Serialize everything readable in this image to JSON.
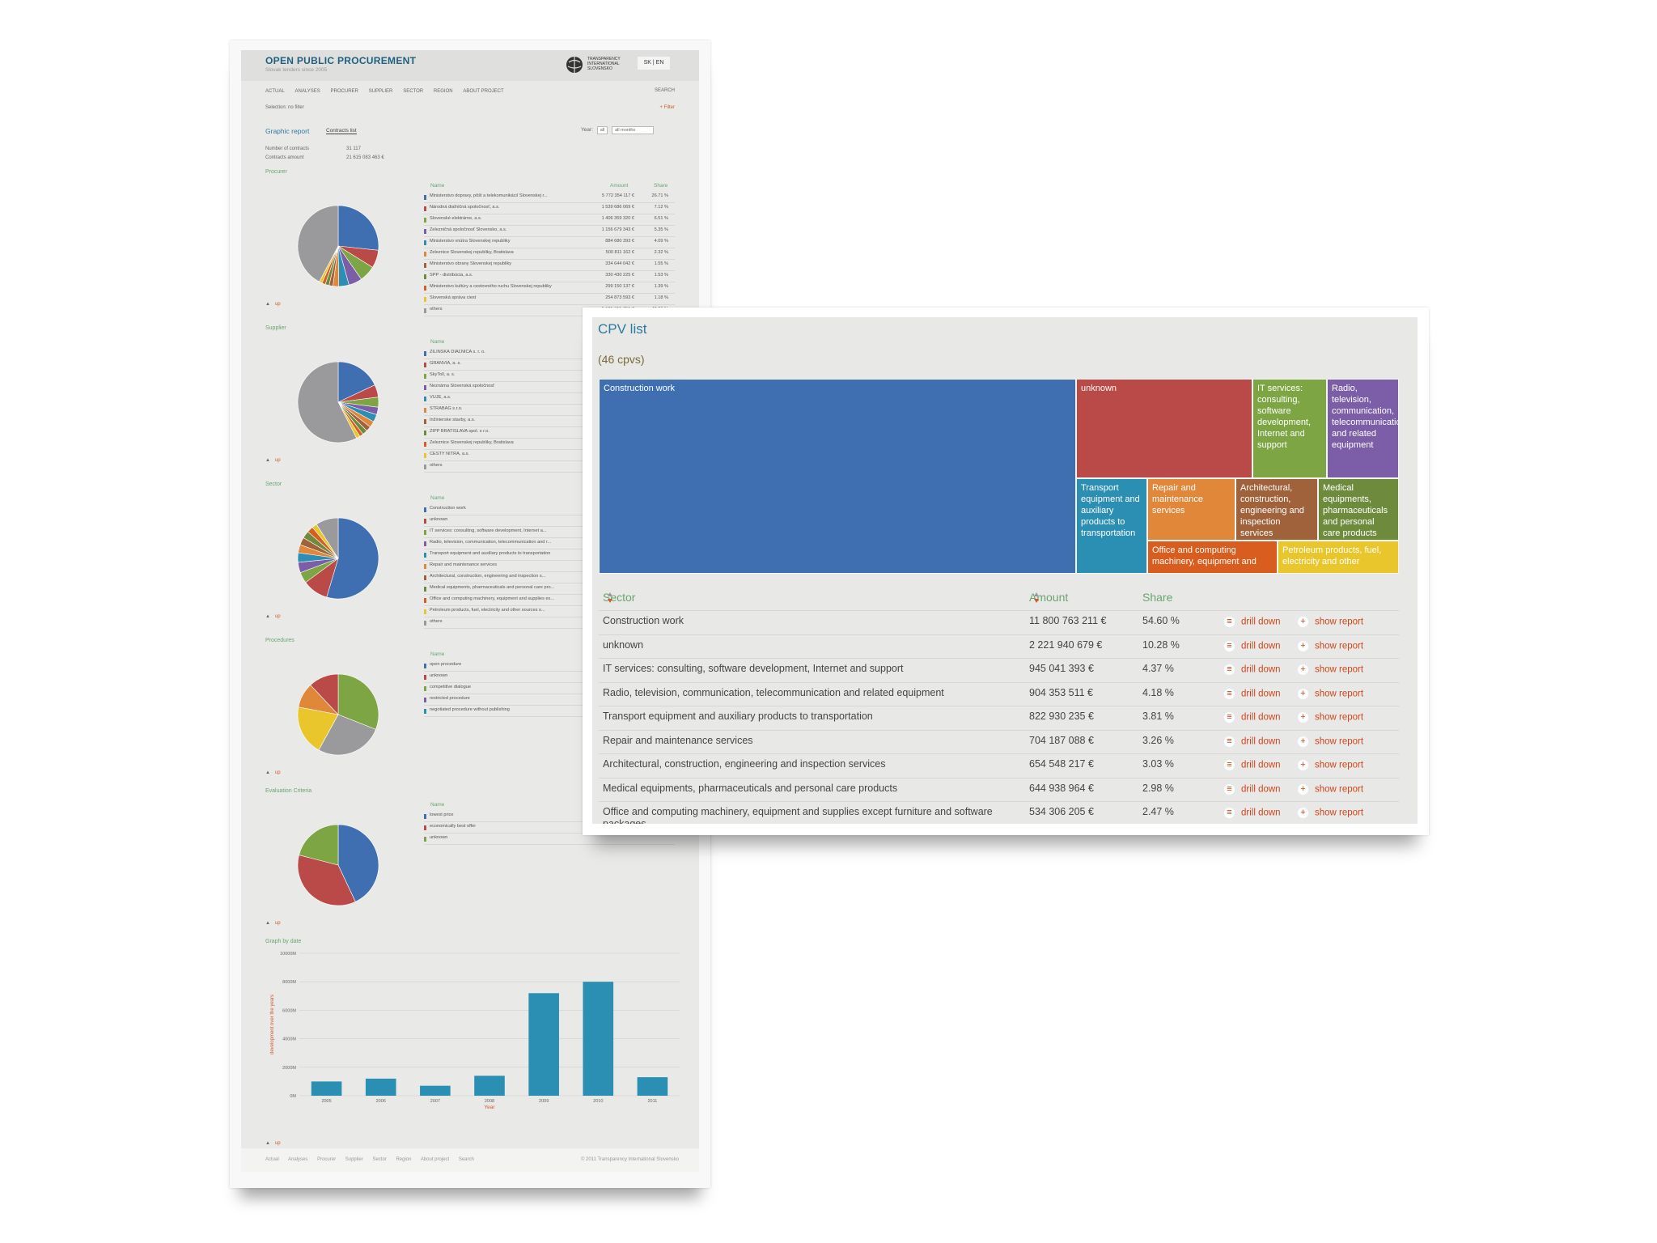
{
  "back_page": {
    "title": "OPEN PUBLIC PROCUREMENT",
    "subtitle": "Slovak tenders since 2005",
    "logo_text": "TRANSPARENCY INTERNATIONAL SLOVENSKO",
    "lang": "SK | EN",
    "nav": [
      "ACTUAL",
      "ANALYSES",
      "PROCURER",
      "SUPPLIER",
      "SECTOR",
      "REGION",
      "ABOUT PROJECT"
    ],
    "nav_search": "SEARCH",
    "selection": "Selection:   no filter",
    "filter": "+  Filter",
    "tab_graphic": "Graphic report",
    "tab_list": "Contracts list",
    "year_label": "Year:",
    "year_value": "all",
    "months_value": "all months",
    "stats": [
      {
        "label": "Number of contracts",
        "value": "31 117"
      },
      {
        "label": "Contracts amount",
        "value": "21 615 083 463 €"
      }
    ],
    "col_name": "Name",
    "col_amount": "Amount",
    "col_share": "Share",
    "up": "up",
    "sections": {
      "procurer": {
        "label": "Procurer",
        "pie": [
          26.71,
          7.12,
          6.51,
          5.35,
          4.09,
          2.32,
          1.55,
          1.53,
          1.39,
          1.18,
          42.26
        ],
        "rows": [
          {
            "name": "Ministerstvo dopravy, pôšt a telekomunikácií Slovenskej r...",
            "amount": "5 772 354 117 €",
            "share": "26.71 %"
          },
          {
            "name": "Národná diaľničná spoločnosť, a.s.",
            "amount": "1 539 686 069 €",
            "share": "7.12 %"
          },
          {
            "name": "Slovenské elektrárne, a.s.",
            "amount": "1 406 359 320 €",
            "share": "6.51 %"
          },
          {
            "name": "Železničná spoločnosť Slovensko, a.s.",
            "amount": "1 156 679 343 €",
            "share": "5.35 %"
          },
          {
            "name": "Ministerstvo vnútra Slovenskej republiky",
            "amount": "884 680 393 €",
            "share": "4.09 %"
          },
          {
            "name": "Železnice Slovenskej republiky, Bratislava",
            "amount": "500 811 162 €",
            "share": "2.32 %"
          },
          {
            "name": "Ministerstvo obrany Slovenskej republiky",
            "amount": "334 644 042 €",
            "share": "1.55 %"
          },
          {
            "name": "SPP - distribúcia, a.s.",
            "amount": "330 430 225 €",
            "share": "1.53 %"
          },
          {
            "name": "Ministerstvo kultúry a cestovného ruchu Slovenskej republiky",
            "amount": "299 150 137 €",
            "share": "1.39 %"
          },
          {
            "name": "Slovenská správa ciest",
            "amount": "254 873 593 €",
            "share": "1.18 %"
          },
          {
            "name": "others",
            "amount": "9 135 015 751 €",
            "share": "42.26 %"
          }
        ]
      },
      "supplier": {
        "label": "Supplier",
        "pie": [
          18,
          5,
          4,
          3,
          3,
          2.5,
          2,
          2,
          1.5,
          1.5,
          57.5
        ],
        "rows": [
          {
            "name": "ŽILINSKÁ DIAĽNICA s. r. o."
          },
          {
            "name": "GRANVIA, a. s."
          },
          {
            "name": "SkyToll, a. s."
          },
          {
            "name": "Neznáma Slovenská spoločnosť"
          },
          {
            "name": "VUJE, a.s."
          },
          {
            "name": "STRABAG s.r.o."
          },
          {
            "name": "Inžinierske stavby, a.s."
          },
          {
            "name": "ZIPP BRATISLAVA spol. s r.o."
          },
          {
            "name": "Železnice Slovenskej republiky, Bratislava"
          },
          {
            "name": "CESTY NITRA, a.s."
          },
          {
            "name": "others"
          }
        ]
      },
      "sector": {
        "label": "Sector",
        "pie": [
          54.6,
          10.28,
          4.37,
          4.18,
          3.81,
          3.26,
          3.03,
          2.98,
          2.47,
          2.0,
          9.02
        ],
        "rows": [
          {
            "name": "Construction work"
          },
          {
            "name": "unknown"
          },
          {
            "name": "IT services: consulting, software development, Internet a..."
          },
          {
            "name": "Radio, television, communication, telecommunication and r..."
          },
          {
            "name": "Transport equipment and auxiliary products to transportation"
          },
          {
            "name": "Repair and maintenance services"
          },
          {
            "name": "Architectural, construction, engineering and inspection s..."
          },
          {
            "name": "Medical equipments, pharmaceuticals and personal care pro..."
          },
          {
            "name": "Office and computing machinery, equipment and supplies ex..."
          },
          {
            "name": "Petroleum products, fuel, electricity and other sources o..."
          },
          {
            "name": "others"
          }
        ]
      },
      "procedures": {
        "label": "Procedures",
        "pie": [
          31,
          27,
          20,
          10,
          12
        ],
        "rows": [
          {
            "name": "open procedure"
          },
          {
            "name": "unknown"
          },
          {
            "name": "competitive dialogue"
          },
          {
            "name": "restricted procedure"
          },
          {
            "name": "negotiated procedure without publishing"
          }
        ]
      },
      "evaluation": {
        "label": "Evaluation Criteria",
        "pie": [
          43,
          36,
          21
        ],
        "rows": [
          {
            "name": "lowest price"
          },
          {
            "name": "economically best offer"
          },
          {
            "name": "unknown"
          }
        ]
      }
    },
    "graph_by_date_label": "Graph by date",
    "footer_links": [
      "Actual",
      "Analyses",
      "Procurer",
      "Supplier",
      "Sector",
      "Region",
      "About project",
      "Search"
    ],
    "footer_copy": "© 2011 Transparency International Slovensko",
    "colors": {
      "blue": "#3f6fb0",
      "red": "#b94a48",
      "green": "#7ea544",
      "purple": "#7b5ea7",
      "teal": "#2b8fb3",
      "orange": "#e0873a",
      "brown": "#a0623a",
      "olive": "#6e8b3d",
      "darkorange": "#d95d1f",
      "yellow": "#e8c62c",
      "grey": "#9a9a9c"
    }
  },
  "chart_data": {
    "type": "bar",
    "title": "",
    "xlabel": "Year",
    "ylabel": "development over the years",
    "categories": [
      "2005",
      "2006",
      "2007",
      "2008",
      "2009",
      "2010",
      "2011"
    ],
    "values": [
      1000,
      1200,
      700,
      1400,
      7200,
      8000,
      1300
    ],
    "yticks": [
      "0M",
      "2000M",
      "4000M",
      "6000M",
      "8000M",
      "10000M"
    ],
    "ylim": [
      0,
      10000
    ],
    "grid": true,
    "color": "#2b8fb3"
  },
  "cpv": {
    "title": "CPV list",
    "count": "(46 cpvs)",
    "treemap": [
      {
        "label": "Construction work",
        "color": "#3f6fb0"
      },
      {
        "label": "unknown",
        "color": "#b94a48"
      },
      {
        "label": "IT services: consulting, software development, Internet and support",
        "color": "#7ea544"
      },
      {
        "label": "Radio, television, communication, telecommunication and related equipment",
        "color": "#7b5ea7"
      },
      {
        "label": "Transport equipment and auxiliary products to transportation",
        "color": "#2b8fb3"
      },
      {
        "label": "Repair and maintenance services",
        "color": "#e0873a"
      },
      {
        "label": "Architectural, construction, engineering and inspection services",
        "color": "#a0623a"
      },
      {
        "label": "Medical equipments, pharmaceuticals and personal care products",
        "color": "#6e8b3d"
      },
      {
        "label": "Office and computing machinery, equipment and",
        "color": "#d95d1f"
      },
      {
        "label": "Petroleum products, fuel, electricity and other",
        "color": "#e8c62c"
      }
    ],
    "col_sector": "Sector",
    "col_amount": "Amount",
    "col_share": "Share",
    "drill_down": "drill down",
    "show_report": "show report",
    "rows": [
      {
        "name": "Construction work",
        "amount": "11 800 763 211 €",
        "share": "54.60 %"
      },
      {
        "name": "unknown",
        "amount": "2 221 940 679 €",
        "share": "10.28 %"
      },
      {
        "name": "IT services: consulting, software development, Internet and support",
        "amount": "945 041 393 €",
        "share": "4.37 %"
      },
      {
        "name": "Radio, television, communication, telecommunication and related equipment",
        "amount": "904 353 511 €",
        "share": "4.18 %"
      },
      {
        "name": "Transport equipment and auxiliary products to transportation",
        "amount": "822 930 235 €",
        "share": "3.81 %"
      },
      {
        "name": "Repair and maintenance services",
        "amount": "704 187 088 €",
        "share": "3.26 %"
      },
      {
        "name": "Architectural, construction, engineering and inspection services",
        "amount": "654 548 217 €",
        "share": "3.03 %"
      },
      {
        "name": "Medical equipments, pharmaceuticals and personal care products",
        "amount": "644 938 964 €",
        "share": "2.98 %"
      },
      {
        "name": "Office and computing machinery, equipment and supplies except furniture and software packages",
        "amount": "534 306 205 €",
        "share": "2.47 %"
      }
    ]
  }
}
